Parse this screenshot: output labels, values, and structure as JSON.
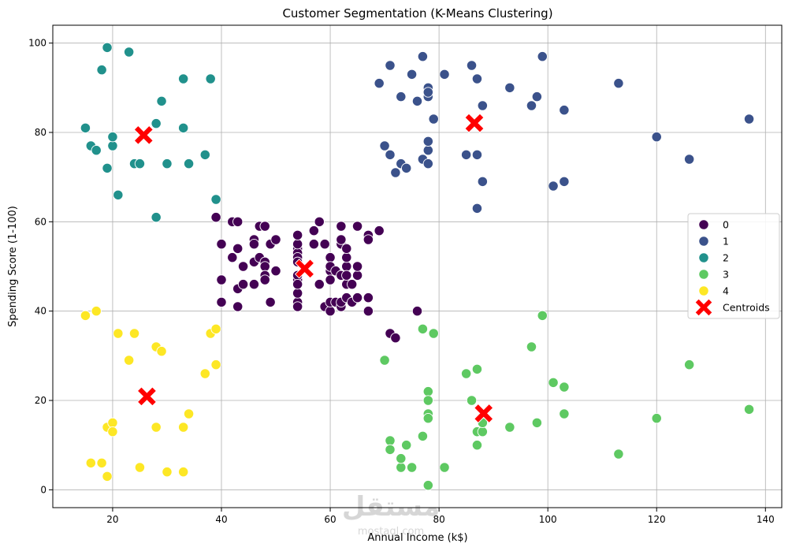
{
  "chart_data": {
    "type": "scatter",
    "title": "Customer Segmentation (K-Means Clustering)",
    "xlabel": "Annual Income (k$)",
    "ylabel": "Spending Score (1-100)",
    "xlim": [
      9,
      143
    ],
    "ylim": [
      -4,
      104
    ],
    "xticks": [
      20,
      40,
      60,
      80,
      100,
      120,
      140
    ],
    "yticks": [
      0,
      20,
      40,
      60,
      80,
      100
    ],
    "grid": true,
    "legend_position": "center-right",
    "series": [
      {
        "name": "0",
        "color": "#440154",
        "points": [
          [
            39,
            61
          ],
          [
            40,
            55
          ],
          [
            40,
            47
          ],
          [
            40,
            42
          ],
          [
            42,
            52
          ],
          [
            42,
            60
          ],
          [
            43,
            54
          ],
          [
            43,
            60
          ],
          [
            43,
            45
          ],
          [
            43,
            41
          ],
          [
            44,
            50
          ],
          [
            44,
            46
          ],
          [
            46,
            51
          ],
          [
            46,
            46
          ],
          [
            46,
            56
          ],
          [
            46,
            55
          ],
          [
            47,
            52
          ],
          [
            47,
            59
          ],
          [
            48,
            51
          ],
          [
            48,
            59
          ],
          [
            48,
            50
          ],
          [
            48,
            48
          ],
          [
            48,
            59
          ],
          [
            48,
            47
          ],
          [
            49,
            55
          ],
          [
            49,
            42
          ],
          [
            50,
            49
          ],
          [
            50,
            56
          ],
          [
            54,
            47
          ],
          [
            54,
            54
          ],
          [
            54,
            53
          ],
          [
            54,
            48
          ],
          [
            54,
            52
          ],
          [
            54,
            42
          ],
          [
            54,
            51
          ],
          [
            54,
            55
          ],
          [
            54,
            41
          ],
          [
            54,
            44
          ],
          [
            54,
            57
          ],
          [
            54,
            46
          ],
          [
            57,
            58
          ],
          [
            57,
            55
          ],
          [
            58,
            60
          ],
          [
            58,
            46
          ],
          [
            59,
            55
          ],
          [
            59,
            41
          ],
          [
            60,
            49
          ],
          [
            60,
            40
          ],
          [
            60,
            42
          ],
          [
            60,
            52
          ],
          [
            60,
            47
          ],
          [
            60,
            50
          ],
          [
            61,
            42
          ],
          [
            61,
            49
          ],
          [
            62,
            41
          ],
          [
            62,
            48
          ],
          [
            62,
            59
          ],
          [
            62,
            55
          ],
          [
            62,
            56
          ],
          [
            62,
            42
          ],
          [
            63,
            50
          ],
          [
            63,
            46
          ],
          [
            63,
            43
          ],
          [
            63,
            48
          ],
          [
            63,
            52
          ],
          [
            63,
            54
          ],
          [
            64,
            42
          ],
          [
            64,
            46
          ],
          [
            65,
            48
          ],
          [
            65,
            50
          ],
          [
            65,
            43
          ],
          [
            65,
            59
          ],
          [
            67,
            43
          ],
          [
            67,
            57
          ],
          [
            67,
            56
          ],
          [
            67,
            40
          ],
          [
            69,
            58
          ],
          [
            71,
            35
          ],
          [
            72,
            34
          ],
          [
            76,
            40
          ]
        ]
      },
      {
        "name": "1",
        "color": "#3b528b",
        "points": [
          [
            69,
            91
          ],
          [
            70,
            77
          ],
          [
            71,
            95
          ],
          [
            71,
            75
          ],
          [
            71,
            75
          ],
          [
            72,
            71
          ],
          [
            73,
            88
          ],
          [
            73,
            73
          ],
          [
            74,
            72
          ],
          [
            75,
            93
          ],
          [
            76,
            87
          ],
          [
            77,
            97
          ],
          [
            77,
            74
          ],
          [
            78,
            90
          ],
          [
            78,
            88
          ],
          [
            78,
            76
          ],
          [
            78,
            89
          ],
          [
            78,
            78
          ],
          [
            78,
            73
          ],
          [
            79,
            83
          ],
          [
            81,
            93
          ],
          [
            85,
            75
          ],
          [
            86,
            95
          ],
          [
            87,
            63
          ],
          [
            87,
            75
          ],
          [
            87,
            92
          ],
          [
            88,
            86
          ],
          [
            88,
            69
          ],
          [
            93,
            90
          ],
          [
            97,
            86
          ],
          [
            98,
            88
          ],
          [
            99,
            97
          ],
          [
            101,
            68
          ],
          [
            103,
            85
          ],
          [
            103,
            69
          ],
          [
            113,
            91
          ],
          [
            120,
            79
          ],
          [
            126,
            74
          ],
          [
            137,
            83
          ]
        ]
      },
      {
        "name": "2",
        "color": "#21918c",
        "points": [
          [
            15,
            81
          ],
          [
            16,
            77
          ],
          [
            17,
            76
          ],
          [
            18,
            94
          ],
          [
            19,
            72
          ],
          [
            19,
            99
          ],
          [
            20,
            77
          ],
          [
            20,
            79
          ],
          [
            21,
            66
          ],
          [
            23,
            98
          ],
          [
            24,
            73
          ],
          [
            25,
            73
          ],
          [
            28,
            82
          ],
          [
            28,
            61
          ],
          [
            29,
            87
          ],
          [
            30,
            73
          ],
          [
            33,
            92
          ],
          [
            33,
            81
          ],
          [
            34,
            73
          ],
          [
            37,
            75
          ],
          [
            38,
            92
          ],
          [
            39,
            65
          ]
        ]
      },
      {
        "name": "3",
        "color": "#5ec962",
        "points": [
          [
            70,
            29
          ],
          [
            71,
            11
          ],
          [
            71,
            9
          ],
          [
            73,
            5
          ],
          [
            73,
            7
          ],
          [
            74,
            10
          ],
          [
            75,
            5
          ],
          [
            77,
            12
          ],
          [
            77,
            36
          ],
          [
            78,
            22
          ],
          [
            78,
            17
          ],
          [
            78,
            20
          ],
          [
            78,
            16
          ],
          [
            78,
            1
          ],
          [
            79,
            35
          ],
          [
            81,
            5
          ],
          [
            85,
            26
          ],
          [
            86,
            20
          ],
          [
            87,
            27
          ],
          [
            87,
            13
          ],
          [
            87,
            10
          ],
          [
            88,
            13
          ],
          [
            88,
            15
          ],
          [
            93,
            14
          ],
          [
            97,
            32
          ],
          [
            98,
            15
          ],
          [
            99,
            39
          ],
          [
            101,
            24
          ],
          [
            103,
            17
          ],
          [
            103,
            23
          ],
          [
            113,
            8
          ],
          [
            120,
            16
          ],
          [
            126,
            28
          ],
          [
            137,
            18
          ]
        ]
      },
      {
        "name": "4",
        "color": "#fde725",
        "points": [
          [
            15,
            39
          ],
          [
            16,
            6
          ],
          [
            17,
            40
          ],
          [
            18,
            6
          ],
          [
            19,
            3
          ],
          [
            19,
            14
          ],
          [
            20,
            15
          ],
          [
            20,
            13
          ],
          [
            21,
            35
          ],
          [
            23,
            29
          ],
          [
            24,
            35
          ],
          [
            25,
            5
          ],
          [
            28,
            14
          ],
          [
            28,
            32
          ],
          [
            29,
            31
          ],
          [
            30,
            4
          ],
          [
            33,
            4
          ],
          [
            33,
            14
          ],
          [
            34,
            17
          ],
          [
            37,
            26
          ],
          [
            38,
            35
          ],
          [
            39,
            36
          ],
          [
            39,
            28
          ]
        ]
      }
    ],
    "centroids": {
      "name": "Centroids",
      "color": "#ff0000",
      "points": [
        [
          55.3,
          49.5
        ],
        [
          86.5,
          82.1
        ],
        [
          25.7,
          79.4
        ],
        [
          88.2,
          17.1
        ],
        [
          26.3,
          20.9
        ]
      ]
    },
    "legend": [
      "0",
      "1",
      "2",
      "3",
      "4",
      "Centroids"
    ]
  },
  "watermark": {
    "main": "مستقل",
    "sub": "mostaql.com"
  }
}
